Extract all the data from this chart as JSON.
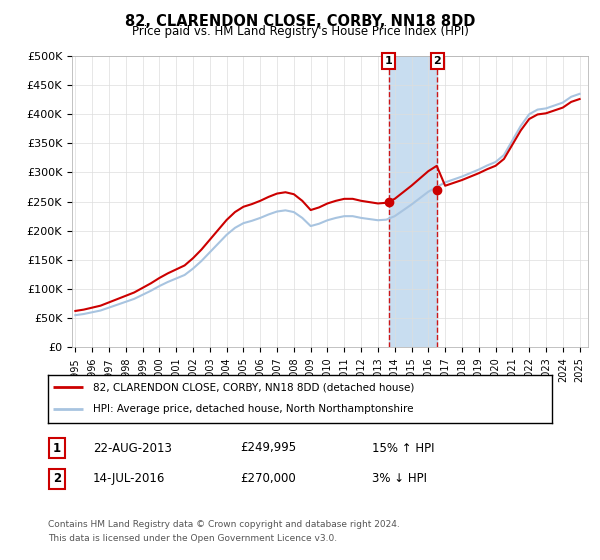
{
  "title": "82, CLARENDON CLOSE, CORBY, NN18 8DD",
  "subtitle": "Price paid vs. HM Land Registry's House Price Index (HPI)",
  "ylim": [
    0,
    500000
  ],
  "yticks": [
    0,
    50000,
    100000,
    150000,
    200000,
    250000,
    300000,
    350000,
    400000,
    450000,
    500000
  ],
  "ytick_labels": [
    "£0",
    "£50K",
    "£100K",
    "£150K",
    "£200K",
    "£250K",
    "£300K",
    "£350K",
    "£400K",
    "£450K",
    "£500K"
  ],
  "hpi_color": "#a8c4e0",
  "sale_color": "#cc0000",
  "shaded_color": "#c8ddf0",
  "dashed_color": "#cc0000",
  "legend_label_sale": "82, CLARENDON CLOSE, CORBY, NN18 8DD (detached house)",
  "legend_label_hpi": "HPI: Average price, detached house, North Northamptonshire",
  "annotation1_label": "1",
  "annotation1_date": "22-AUG-2013",
  "annotation1_price": "£249,995",
  "annotation1_hpi": "15% ↑ HPI",
  "annotation2_label": "2",
  "annotation2_date": "14-JUL-2016",
  "annotation2_price": "£270,000",
  "annotation2_hpi": "3% ↓ HPI",
  "footnote1": "Contains HM Land Registry data © Crown copyright and database right 2024.",
  "footnote2": "This data is licensed under the Open Government Licence v3.0.",
  "sale1_x": 2013.65,
  "sale1_y": 249995,
  "sale2_x": 2016.54,
  "sale2_y": 270000,
  "shade_x1": 2013.65,
  "shade_x2": 2016.54,
  "background_color": "#ffffff",
  "grid_color": "#dddddd",
  "x_min": 1994.8,
  "x_max": 2025.5
}
